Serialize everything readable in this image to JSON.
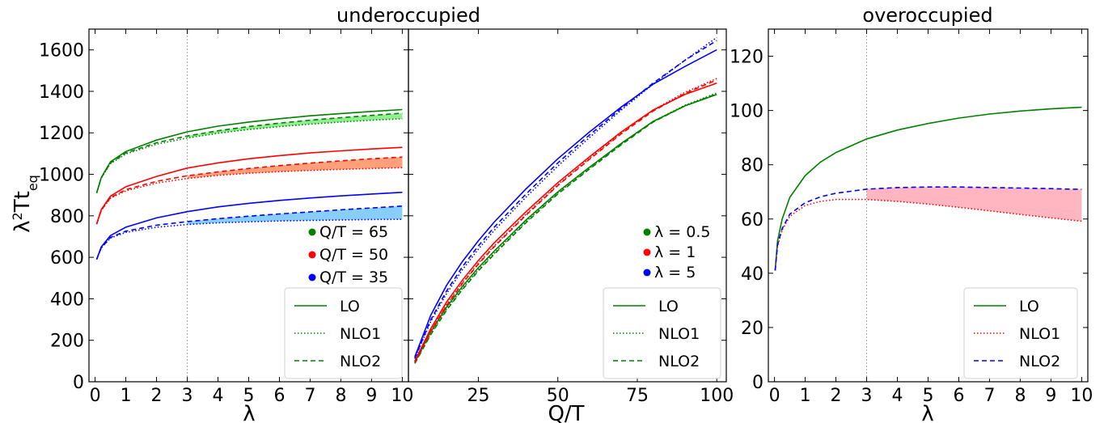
{
  "chart_data": [
    {
      "type": "line",
      "panel": "left",
      "title": "underoccupied",
      "xlabel": "λ",
      "ylabel": "λ²Tt_eq",
      "ylabel_main": "λ",
      "ylabel_sup": "2",
      "ylabel_rest": "Tt",
      "ylabel_sub": "eq",
      "xlim": [
        -0.2,
        10.2
      ],
      "ylim": [
        0,
        1700
      ],
      "xticks": [
        0,
        1,
        2,
        3,
        4,
        5,
        6,
        7,
        8,
        9,
        10
      ],
      "xtick_labels": [
        "0",
        "1",
        "2",
        "3",
        "4",
        "5",
        "6",
        "7",
        "8",
        "9",
        "10"
      ],
      "yticks": [
        0,
        200,
        400,
        600,
        800,
        1000,
        1200,
        1400,
        1600
      ],
      "ytick_labels": [
        "0",
        "200",
        "400",
        "600",
        "800",
        "1000",
        "1200",
        "1400",
        "1600"
      ],
      "vline_x": 3,
      "grid": false,
      "x": [
        0.05,
        0.2,
        0.5,
        1,
        2,
        3,
        4,
        5,
        6,
        7,
        8,
        9,
        10
      ],
      "series": [
        {
          "group": "Q/T = 65",
          "color": "#008000",
          "style": "solid",
          "values": [
            910,
            985,
            1060,
            1110,
            1165,
            1205,
            1232,
            1252,
            1268,
            1282,
            1293,
            1303,
            1312
          ]
        },
        {
          "group": "Q/T = 65",
          "color": "#008000",
          "style": "dotted",
          "values": [
            910,
            982,
            1052,
            1098,
            1145,
            1175,
            1198,
            1216,
            1230,
            1242,
            1252,
            1261,
            1268
          ]
        },
        {
          "group": "Q/T = 65",
          "color": "#008000",
          "style": "dashed",
          "values": [
            910,
            983,
            1055,
            1103,
            1152,
            1185,
            1210,
            1230,
            1247,
            1261,
            1273,
            1284,
            1295
          ]
        },
        {
          "group": "Q/T = 50",
          "color": "#ff0000",
          "style": "solid",
          "values": [
            760,
            830,
            895,
            940,
            990,
            1030,
            1055,
            1075,
            1090,
            1103,
            1113,
            1122,
            1130
          ]
        },
        {
          "group": "Q/T = 50",
          "color": "#ff0000",
          "style": "dotted",
          "values": [
            760,
            826,
            885,
            920,
            958,
            980,
            995,
            1005,
            1013,
            1019,
            1024,
            1028,
            1032
          ]
        },
        {
          "group": "Q/T = 50",
          "color": "#ff0000",
          "style": "dashed",
          "values": [
            760,
            827,
            888,
            926,
            966,
            993,
            1012,
            1028,
            1042,
            1054,
            1065,
            1075,
            1083
          ]
        },
        {
          "group": "Q/T = 35",
          "color": "#0000ff",
          "style": "solid",
          "values": [
            590,
            650,
            705,
            745,
            790,
            820,
            843,
            860,
            874,
            886,
            896,
            905,
            913
          ]
        },
        {
          "group": "Q/T = 35",
          "color": "#0000ff",
          "style": "dotted",
          "values": [
            590,
            645,
            693,
            720,
            745,
            758,
            766,
            771,
            775,
            778,
            780,
            782,
            783
          ]
        },
        {
          "group": "Q/T = 35",
          "color": "#0000ff",
          "style": "dashed",
          "values": [
            590,
            646,
            696,
            726,
            755,
            772,
            786,
            798,
            809,
            819,
            829,
            838,
            847
          ]
        }
      ],
      "bands": [
        {
          "color": "#90ee90",
          "lower": "dotted",
          "upper": "dashed",
          "group": "Q/T = 65",
          "x_from": 3
        },
        {
          "color": "#ffa07a",
          "lower": "dotted",
          "upper": "dashed",
          "group": "Q/T = 50",
          "x_from": 3
        },
        {
          "color": "#87cefa",
          "lower": "dotted",
          "upper": "dashed",
          "group": "Q/T = 35",
          "x_from": 3
        }
      ],
      "marker_legend": [
        {
          "label": "Q/T = 65",
          "color": "#008000"
        },
        {
          "label": "Q/T = 50",
          "color": "#ff0000"
        },
        {
          "label": "Q/T = 35",
          "color": "#0000ff"
        }
      ],
      "style_legend": [
        {
          "label": "LO",
          "color": "#008000",
          "style": "solid"
        },
        {
          "label": "NLO1",
          "color": "#008000",
          "style": "dotted"
        },
        {
          "label": "NLO2",
          "color": "#008000",
          "style": "dashed"
        }
      ]
    },
    {
      "type": "line",
      "panel": "middle",
      "title": "",
      "xlabel": "Q/T",
      "ylabel": "",
      "xlim": [
        3,
        103
      ],
      "ylim": [
        0,
        1700
      ],
      "xticks": [
        25,
        50,
        75,
        100
      ],
      "xtick_labels": [
        "25",
        "50",
        "75",
        "100"
      ],
      "yticks": [
        0,
        200,
        400,
        600,
        800,
        1000,
        1200,
        1400,
        1600
      ],
      "ytick_labels": [],
      "grid": false,
      "x": [
        5,
        10,
        15,
        20,
        25,
        30,
        40,
        50,
        60,
        70,
        80,
        90,
        100
      ],
      "series": [
        {
          "group": "λ = 0.5",
          "color": "#008000",
          "style": "solid",
          "values": [
            95,
            240,
            360,
            460,
            550,
            630,
            780,
            915,
            1035,
            1150,
            1255,
            1330,
            1385
          ]
        },
        {
          "group": "λ = 0.5",
          "color": "#008000",
          "style": "dotted",
          "values": [
            90,
            230,
            350,
            450,
            540,
            620,
            772,
            910,
            1030,
            1146,
            1255,
            1333,
            1392
          ]
        },
        {
          "group": "λ = 0.5",
          "color": "#008000",
          "style": "dashed",
          "values": [
            88,
            226,
            345,
            445,
            535,
            615,
            767,
            905,
            1026,
            1143,
            1252,
            1330,
            1388
          ]
        },
        {
          "group": "λ = 1",
          "color": "#ff0000",
          "style": "solid",
          "values": [
            100,
            255,
            385,
            490,
            585,
            670,
            820,
            960,
            1085,
            1205,
            1310,
            1385,
            1440
          ]
        },
        {
          "group": "λ = 1",
          "color": "#ff0000",
          "style": "dotted",
          "values": [
            96,
            245,
            372,
            478,
            572,
            656,
            808,
            950,
            1077,
            1200,
            1310,
            1395,
            1462
          ]
        },
        {
          "group": "λ = 1",
          "color": "#ff0000",
          "style": "dashed",
          "values": [
            95,
            242,
            368,
            474,
            567,
            651,
            803,
            946,
            1073,
            1196,
            1305,
            1390,
            1455
          ]
        },
        {
          "group": "λ = 5",
          "color": "#0000ff",
          "style": "solid",
          "values": [
            120,
            320,
            465,
            580,
            680,
            770,
            930,
            1075,
            1205,
            1325,
            1435,
            1520,
            1600
          ]
        },
        {
          "group": "λ = 5",
          "color": "#0000ff",
          "style": "dotted",
          "values": [
            112,
            290,
            425,
            540,
            640,
            730,
            890,
            1040,
            1178,
            1310,
            1435,
            1550,
            1660
          ]
        },
        {
          "group": "λ = 5",
          "color": "#0000ff",
          "style": "dashed",
          "values": [
            114,
            298,
            438,
            555,
            655,
            745,
            905,
            1055,
            1190,
            1318,
            1440,
            1550,
            1645
          ]
        }
      ],
      "bands": [],
      "marker_legend": [
        {
          "label": "λ = 0.5",
          "color": "#008000"
        },
        {
          "label": "λ = 1",
          "color": "#ff0000"
        },
        {
          "label": "λ = 5",
          "color": "#0000ff"
        }
      ],
      "style_legend": [
        {
          "label": "LO",
          "color": "#008000",
          "style": "solid"
        },
        {
          "label": "NLO1",
          "color": "#008000",
          "style": "dotted"
        },
        {
          "label": "NLO2",
          "color": "#008000",
          "style": "dashed"
        }
      ]
    },
    {
      "type": "line",
      "panel": "right",
      "title": "overoccupied",
      "xlabel": "λ",
      "ylabel": "",
      "xlim": [
        -0.2,
        10.2
      ],
      "ylim": [
        0,
        130
      ],
      "xticks": [
        0,
        1,
        2,
        3,
        4,
        5,
        6,
        7,
        8,
        9,
        10
      ],
      "xtick_labels": [
        "0",
        "1",
        "2",
        "3",
        "4",
        "5",
        "6",
        "7",
        "8",
        "9",
        "10"
      ],
      "yticks": [
        0,
        20,
        40,
        60,
        80,
        100,
        120
      ],
      "ytick_labels": [
        "0",
        "20",
        "40",
        "60",
        "80",
        "100",
        "120"
      ],
      "vline_x": 3,
      "grid": false,
      "x": [
        0.02,
        0.1,
        0.25,
        0.5,
        1,
        1.5,
        2,
        3,
        4,
        5,
        6,
        7,
        8,
        9,
        10
      ],
      "series": [
        {
          "group": "",
          "color": "#008000",
          "style": "solid",
          "values": [
            41,
            52,
            60,
            68,
            76,
            81,
            84.5,
            89.5,
            92.8,
            95.2,
            97.2,
            98.7,
            99.8,
            100.6,
            101.2
          ]
        },
        {
          "group": "",
          "color": "#ff0000",
          "style": "dotted",
          "values": [
            41,
            50,
            56,
            61,
            65,
            66.5,
            67.2,
            67.2,
            66.5,
            65.5,
            64.3,
            63.0,
            61.7,
            60.4,
            59.2
          ]
        },
        {
          "group": "",
          "color": "#0000ff",
          "style": "dashed",
          "values": [
            41,
            50.5,
            56.5,
            61.8,
            66,
            68.2,
            69.5,
            71,
            71.6,
            71.8,
            71.8,
            71.6,
            71.4,
            71.2,
            70.9
          ]
        }
      ],
      "bands": [
        {
          "color": "#ffb6c1",
          "lower_index": 1,
          "upper_index": 2,
          "x_from": 3
        }
      ],
      "marker_legend": [],
      "style_legend": [
        {
          "label": "LO",
          "color": "#008000",
          "style": "solid"
        },
        {
          "label": "NLO1",
          "color": "#ff0000",
          "style": "dotted"
        },
        {
          "label": "NLO2",
          "color": "#0000ff",
          "style": "dashed"
        }
      ]
    }
  ]
}
